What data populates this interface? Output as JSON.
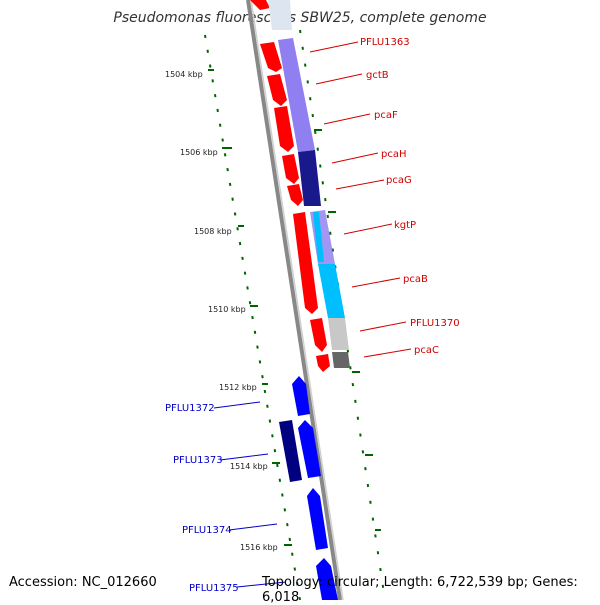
{
  "title": "Pseudomonas fluorescens SBW25, complete genome",
  "accession": "Accession: NC_012660",
  "summary": "Topology: circular; Length: 6,722,539 bp; Genes: 6,018",
  "ticks": [
    "1504 kbp",
    "1506 kbp",
    "1508 kbp",
    "1510 kbp",
    "1512 kbp",
    "1514 kbp",
    "1516 kbp"
  ],
  "genes_right": [
    "PFLU1363",
    "gctB",
    "pcaF",
    "pcaH",
    "pcaG",
    "kgtP",
    "pcaB",
    "PFLU1370",
    "pcaC"
  ],
  "genes_left": [
    "PFLU1372",
    "PFLU1373",
    "PFLU1374",
    "PFLU1375"
  ],
  "colors": {
    "red": "#ff0000",
    "blue": "#0000ff",
    "navy": "#000080",
    "lavender": "#7b68ee",
    "cyan": "#00bfff",
    "grey": "#c8c8c8",
    "dark_grey": "#666666",
    "gc_dots": "#006400"
  }
}
